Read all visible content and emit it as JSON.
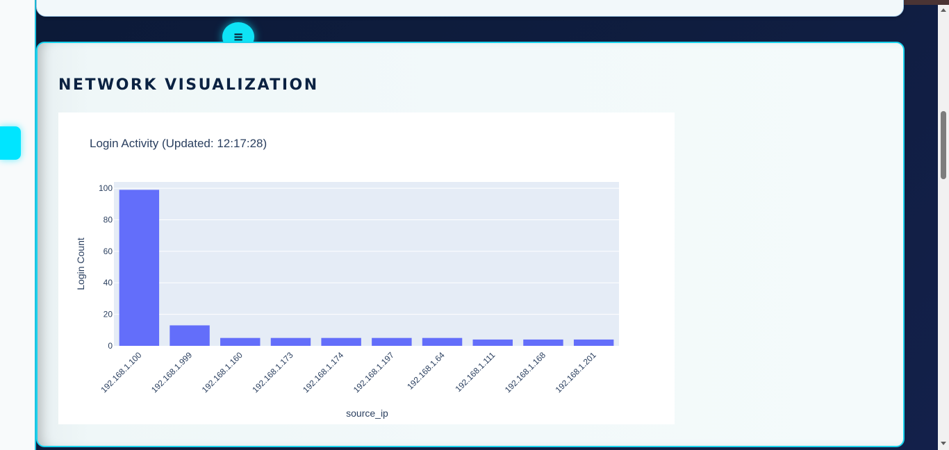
{
  "menu_button": {
    "icon": "hamburger-icon",
    "glyph": "≡"
  },
  "section": {
    "title": "NETWORK VISUALIZATION"
  },
  "colors": {
    "accent": "#00e5ff",
    "bar": "#636efa",
    "plot_bg": "#e5ecf6",
    "title_text": "#0b2242"
  },
  "chart_data": {
    "type": "bar",
    "title": "Login Activity (Updated: 12:17:28)",
    "xlabel": "source_ip",
    "ylabel": "Login Count",
    "categories": [
      "192.168.1.100",
      "192.168.1.999",
      "192.168.1.160",
      "192.168.1.173",
      "192.168.1.174",
      "192.168.1.197",
      "192.168.1.64",
      "192.168.1.111",
      "192.168.1.168",
      "192.168.1.201"
    ],
    "values": [
      99,
      13,
      5,
      5,
      5,
      5,
      5,
      4,
      4,
      4
    ],
    "ylim": [
      0,
      104
    ],
    "yticks": [
      0,
      20,
      40,
      60,
      80,
      100
    ],
    "grid": true
  }
}
